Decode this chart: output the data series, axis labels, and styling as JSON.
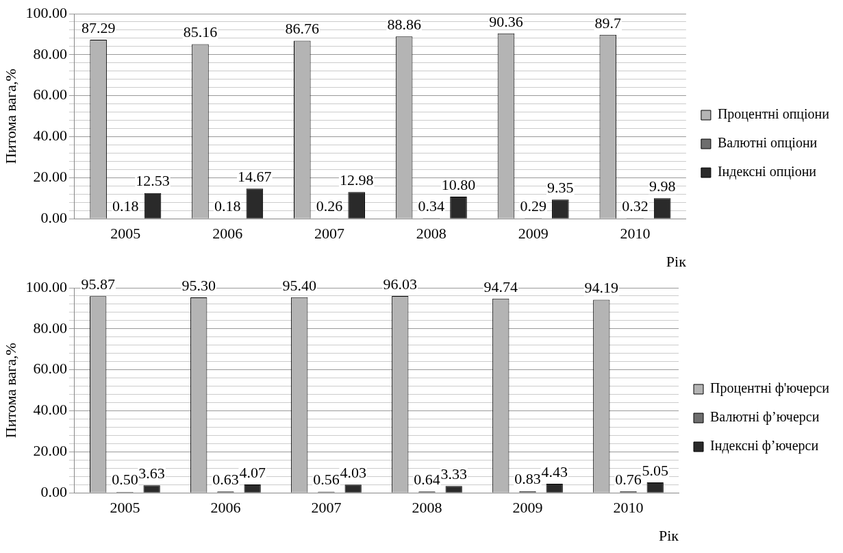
{
  "chart_data": [
    {
      "type": "bar",
      "ylabel": "Питома вага,%",
      "xlabel": "Рік",
      "categories": [
        "2005",
        "2006",
        "2007",
        "2008",
        "2009",
        "2010"
      ],
      "series": [
        {
          "name": "Процентні опціони",
          "color": "#b4b4b4",
          "values": [
            87.29,
            85.16,
            86.76,
            88.86,
            90.36,
            89.7
          ],
          "value_labels": [
            "87.29",
            "85.16",
            "86.76",
            "88.86",
            "90.36",
            "89.7"
          ]
        },
        {
          "name": "Валютні опціони",
          "color": "#6e6e6e",
          "values": [
            0.18,
            0.18,
            0.26,
            0.34,
            0.29,
            0.32
          ],
          "value_labels": [
            "0.18",
            "0.18",
            "0.26",
            "0.34",
            "0.29",
            "0.32"
          ]
        },
        {
          "name": "Індексні опціони",
          "color": "#2a2a2a",
          "values": [
            12.53,
            14.67,
            12.98,
            10.8,
            9.35,
            9.98
          ],
          "value_labels": [
            "12.53",
            "14.67",
            "12.98",
            "10.80",
            "9.35",
            "9.98"
          ]
        }
      ],
      "ylim": [
        0,
        100
      ],
      "yticks": [
        {
          "value": 0,
          "label": "0.00"
        },
        {
          "value": 4,
          "label": null
        },
        {
          "value": 8,
          "label": null
        },
        {
          "value": 12,
          "label": null
        },
        {
          "value": 16,
          "label": null
        },
        {
          "value": 20,
          "label": "20.00"
        },
        {
          "value": 24,
          "label": null
        },
        {
          "value": 28,
          "label": null
        },
        {
          "value": 32,
          "label": null
        },
        {
          "value": 36,
          "label": null
        },
        {
          "value": 40,
          "label": "40.00"
        },
        {
          "value": 44,
          "label": null
        },
        {
          "value": 48,
          "label": null
        },
        {
          "value": 52,
          "label": null
        },
        {
          "value": 56,
          "label": null
        },
        {
          "value": 60,
          "label": "60.00"
        },
        {
          "value": 64,
          "label": null
        },
        {
          "value": 68,
          "label": null
        },
        {
          "value": 72,
          "label": null
        },
        {
          "value": 76,
          "label": null
        },
        {
          "value": 80,
          "label": "80.00"
        },
        {
          "value": 84,
          "label": null
        },
        {
          "value": 88,
          "label": null
        },
        {
          "value": 92,
          "label": null
        },
        {
          "value": 96,
          "label": null
        },
        {
          "value": 100,
          "label": "100.00"
        }
      ],
      "grid": "y",
      "legend": "right"
    },
    {
      "type": "bar",
      "ylabel": "Питома вага,%",
      "xlabel": "Рік",
      "categories": [
        "2005",
        "2006",
        "2007",
        "2008",
        "2009",
        "2010"
      ],
      "series": [
        {
          "name": "Процентні ф'ючерси",
          "color": "#b4b4b4",
          "values": [
            95.87,
            95.3,
            95.4,
            96.03,
            94.74,
            94.19
          ],
          "value_labels": [
            "95.87",
            "95.30",
            "95.40",
            "96.03",
            "94.74",
            "94.19"
          ]
        },
        {
          "name": "Валютні ф’ючерси",
          "color": "#6e6e6e",
          "values": [
            0.5,
            0.63,
            0.56,
            0.64,
            0.83,
            0.76
          ],
          "value_labels": [
            "0.50",
            "0.63",
            "0.56",
            "0.64",
            "0.83",
            "0.76"
          ]
        },
        {
          "name": "Індексні ф’ючерси",
          "color": "#2a2a2a",
          "values": [
            3.63,
            4.07,
            4.03,
            3.33,
            4.43,
            5.05
          ],
          "value_labels": [
            "3.63",
            "4.07",
            "4.03",
            "3.33",
            "4.43",
            "5.05"
          ]
        }
      ],
      "ylim": [
        0,
        100
      ],
      "yticks": [
        {
          "value": 0,
          "label": "0.00"
        },
        {
          "value": 4,
          "label": null
        },
        {
          "value": 8,
          "label": null
        },
        {
          "value": 12,
          "label": null
        },
        {
          "value": 16,
          "label": null
        },
        {
          "value": 20,
          "label": "20.00"
        },
        {
          "value": 24,
          "label": null
        },
        {
          "value": 28,
          "label": null
        },
        {
          "value": 32,
          "label": null
        },
        {
          "value": 36,
          "label": null
        },
        {
          "value": 40,
          "label": "40.00"
        },
        {
          "value": 44,
          "label": null
        },
        {
          "value": 48,
          "label": null
        },
        {
          "value": 52,
          "label": null
        },
        {
          "value": 56,
          "label": null
        },
        {
          "value": 60,
          "label": "60.00"
        },
        {
          "value": 64,
          "label": null
        },
        {
          "value": 68,
          "label": null
        },
        {
          "value": 72,
          "label": null
        },
        {
          "value": 76,
          "label": null
        },
        {
          "value": 80,
          "label": "80.00"
        },
        {
          "value": 84,
          "label": null
        },
        {
          "value": 88,
          "label": null
        },
        {
          "value": 92,
          "label": null
        },
        {
          "value": 96,
          "label": null
        },
        {
          "value": 100,
          "label": "100.00"
        }
      ],
      "grid": "y",
      "legend": "right"
    }
  ]
}
